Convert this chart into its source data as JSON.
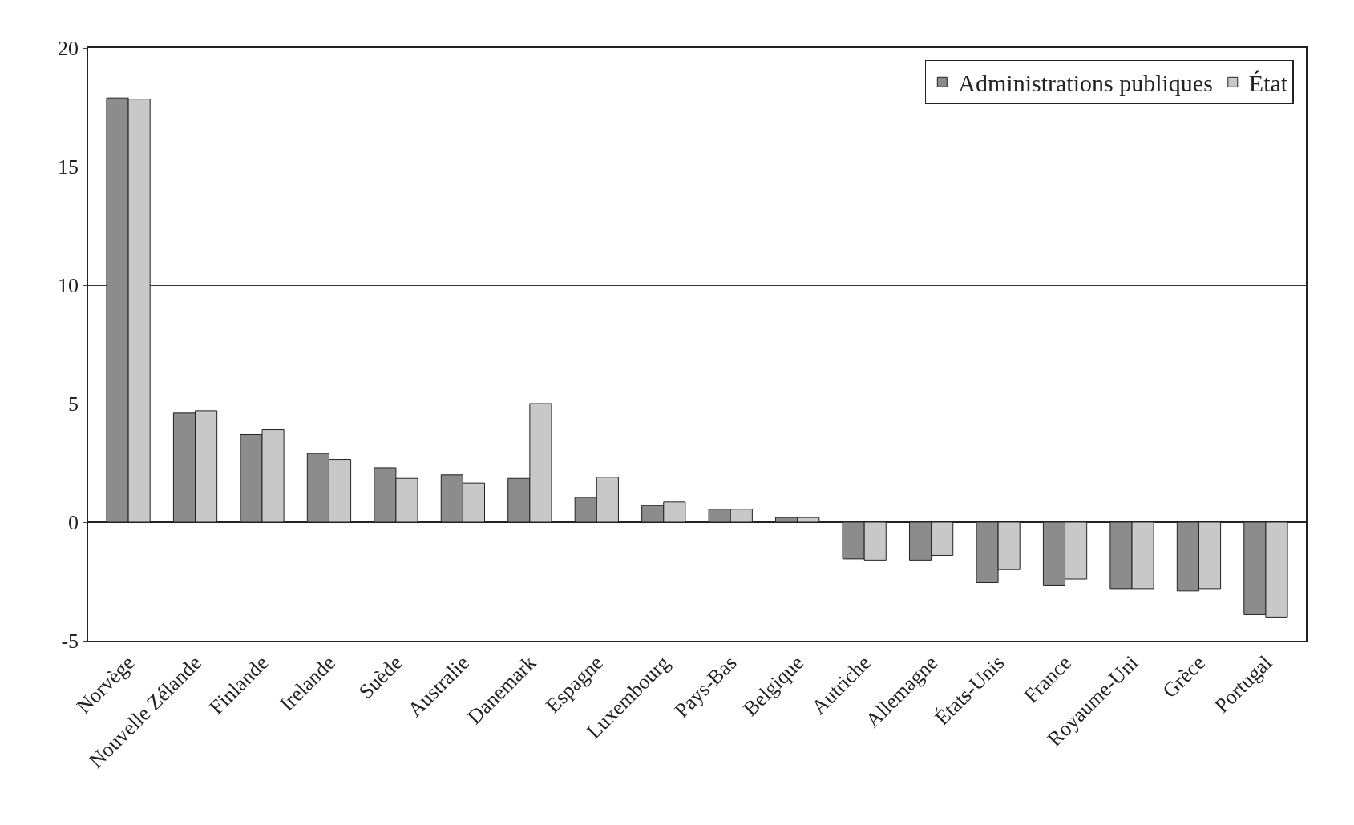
{
  "chart_data": {
    "type": "bar",
    "categories": [
      "Norvège",
      "Nouvelle Zélande",
      "Finlande",
      "Irelande",
      "Suède",
      "Australie",
      "Danemark",
      "Espagne",
      "Luxembourg",
      "Pays-Bas",
      "Belgique",
      "Autriche",
      "Allemagne",
      "États-Unis",
      "France",
      "Royaume-Uni",
      "Grèce",
      "Portugal"
    ],
    "series": [
      {
        "name": "Administrations publiques",
        "color": "#8c8c8c",
        "values": [
          17.9,
          4.6,
          3.7,
          2.9,
          2.3,
          2.0,
          1.85,
          1.05,
          0.7,
          0.55,
          0.2,
          -1.55,
          -1.6,
          -2.55,
          -2.65,
          -2.8,
          -2.9,
          -3.9
        ]
      },
      {
        "name": "État",
        "color": "#c8c8c8",
        "values": [
          17.85,
          4.7,
          3.9,
          2.65,
          1.85,
          1.65,
          5.0,
          1.9,
          0.85,
          0.55,
          0.2,
          -1.6,
          -1.4,
          -2.0,
          -2.4,
          -2.8,
          -2.8,
          -4.0
        ]
      }
    ],
    "ylim": [
      -5,
      20
    ],
    "yticks": [
      -5,
      0,
      5,
      10,
      15,
      20
    ],
    "grid": "y",
    "legend": "top right"
  }
}
